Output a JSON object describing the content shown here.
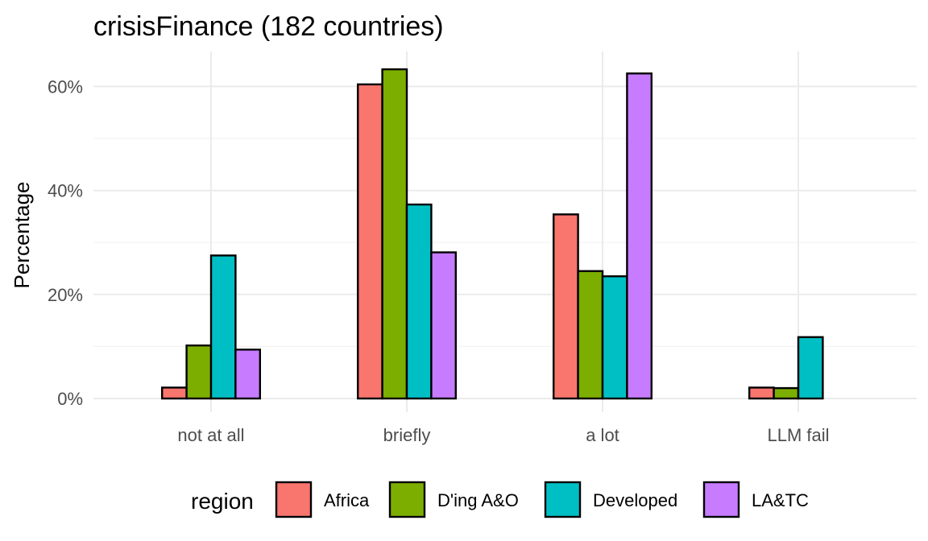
{
  "chart_data": {
    "type": "bar",
    "title": "crisisFinance (182 countries)",
    "xlabel": "",
    "ylabel": "Percentage",
    "categories": [
      "not at all",
      "briefly",
      "a lot",
      "LLM fail"
    ],
    "ylim": [
      0,
      66
    ],
    "y_ticks": [
      0,
      20,
      40,
      60
    ],
    "y_tick_labels": [
      "0%",
      "20%",
      "40%",
      "60%"
    ],
    "grid": true,
    "legend": {
      "title": "region",
      "position": "bottom"
    },
    "series": [
      {
        "name": "Africa",
        "color": "#F8766D",
        "values": [
          2.1,
          60.4,
          35.4,
          2.1
        ]
      },
      {
        "name": "D'ing A&O",
        "color": "#7CAE00",
        "values": [
          10.2,
          63.3,
          24.5,
          2.0
        ]
      },
      {
        "name": "Developed",
        "color": "#00BFC4",
        "values": [
          27.5,
          37.3,
          23.5,
          11.8
        ]
      },
      {
        "name": "LA&TC",
        "color": "#C77CFF",
        "values": [
          9.4,
          28.1,
          62.5,
          0
        ]
      }
    ]
  }
}
